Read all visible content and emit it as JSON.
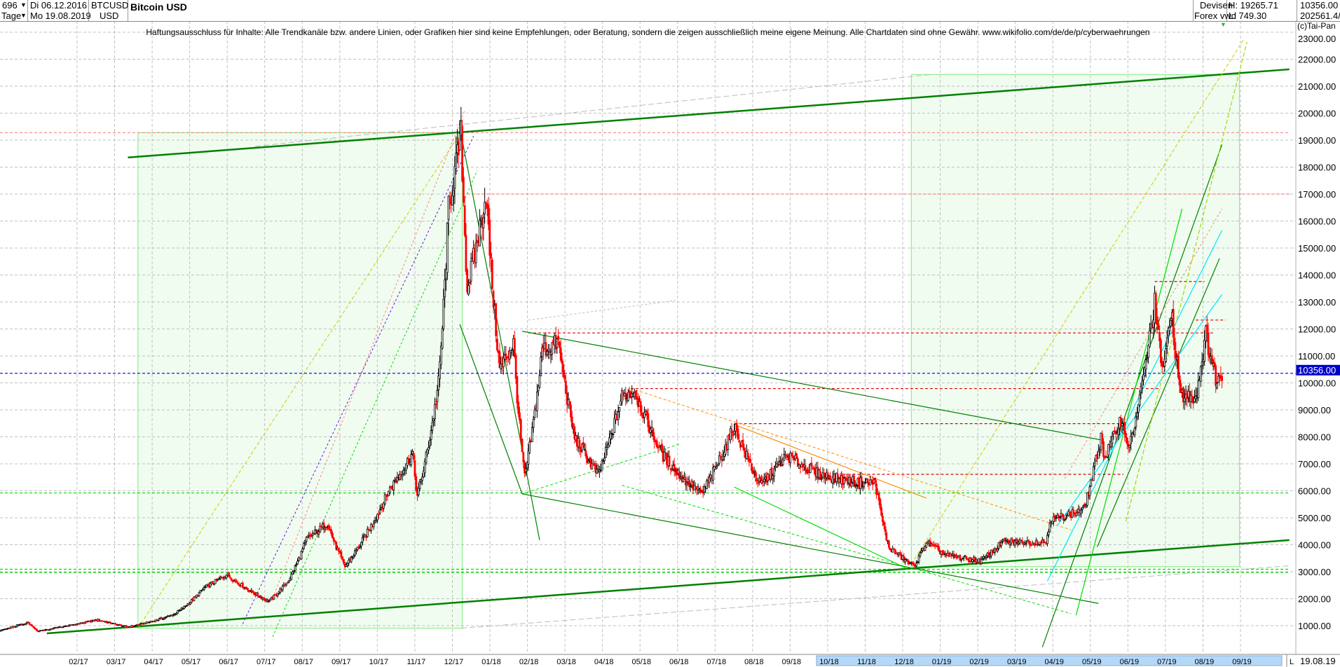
{
  "header": {
    "period_count": "696",
    "interval": "Tage",
    "start_date": "Di 06.12.2016",
    "end_date": "Mo 19.08.2019",
    "symbol": "BTCUSD",
    "currency": "USD",
    "title": "Bitcoin USD",
    "source_line1": "Devisen",
    "source_line2": "Forex vwd",
    "high": "H: 19265.71",
    "low": "L: 749.30",
    "last": "10356.00",
    "volume": "202561.4/"
  },
  "disclaimer": "Haftungsausschluss für Inhalte: Alle Trendkanäle bzw. andere Linien, oder Grafiken hier sind keine Empfehlungen, oder Beratung, sondern die zeigen ausschließlich meine eigene Meinung. Alle Chartdaten sind ohne Gewähr.  www.wikifolio.com/de/de/p/cyberwaehrungen",
  "copyright": "(c)Tai-Pan",
  "footer": {
    "scale_mode": "L",
    "last_date": "19.08.19"
  },
  "chart_data": {
    "type": "candlestick",
    "title": "Bitcoin USD",
    "ylim": [
      0,
      23000
    ],
    "y_ticks": [
      "1000.00",
      "2000.00",
      "3000.00",
      "4000.00",
      "5000.00",
      "6000.00",
      "7000.00",
      "8000.00",
      "9000.00",
      "10000.00",
      "11000.00",
      "12000.00",
      "13000.00",
      "14000.00",
      "15000.00",
      "16000.00",
      "17000.00",
      "18000.00",
      "19000.00",
      "20000.00",
      "21000.00",
      "22000.00",
      "23000.00"
    ],
    "x_ticks": [
      "02/17",
      "03/17",
      "04/17",
      "05/17",
      "06/17",
      "07/17",
      "08/17",
      "09/17",
      "10/17",
      "11/17",
      "12/17",
      "01/18",
      "02/18",
      "03/18",
      "04/18",
      "05/18",
      "06/18",
      "07/18",
      "08/18",
      "09/18",
      "10/18",
      "11/18",
      "12/18",
      "01/19",
      "02/19",
      "03/19",
      "04/19",
      "05/19",
      "06/19",
      "07/19",
      "08/19",
      "09/19"
    ],
    "x_highlight": [
      "10/18",
      "09/19"
    ],
    "grid": true,
    "up_color": "#000000",
    "down_color": "#ff0000",
    "current_price": {
      "value": 10356,
      "label": "10356.00",
      "color": "#0000cc"
    },
    "close_path": [
      [
        "2016-12-06",
        760
      ],
      [
        "2017-01-04",
        1130
      ],
      [
        "2017-01-12",
        790
      ],
      [
        "2017-02-01",
        970
      ],
      [
        "2017-03-01",
        1220
      ],
      [
        "2017-03-25",
        950
      ],
      [
        "2017-04-15",
        1180
      ],
      [
        "2017-05-01",
        1420
      ],
      [
        "2017-05-25",
        2400
      ],
      [
        "2017-06-12",
        2900
      ],
      [
        "2017-07-16",
        1900
      ],
      [
        "2017-08-01",
        2700
      ],
      [
        "2017-08-15",
        4200
      ],
      [
        "2017-09-01",
        4800
      ],
      [
        "2017-09-15",
        3200
      ],
      [
        "2017-10-01",
        4300
      ],
      [
        "2017-10-20",
        6000
      ],
      [
        "2017-11-08",
        7400
      ],
      [
        "2017-11-12",
        5800
      ],
      [
        "2017-11-29",
        10000
      ],
      [
        "2017-12-07",
        16500
      ],
      [
        "2017-12-17",
        19200
      ],
      [
        "2017-12-22",
        13500
      ],
      [
        "2018-01-06",
        17000
      ],
      [
        "2018-01-17",
        10500
      ],
      [
        "2018-01-28",
        11500
      ],
      [
        "2018-02-06",
        6500
      ],
      [
        "2018-02-20",
        11200
      ],
      [
        "2018-03-05",
        11500
      ],
      [
        "2018-03-18",
        8000
      ],
      [
        "2018-04-06",
        6600
      ],
      [
        "2018-04-25",
        9500
      ],
      [
        "2018-05-05",
        9700
      ],
      [
        "2018-05-28",
        7300
      ],
      [
        "2018-06-12",
        6500
      ],
      [
        "2018-06-28",
        5900
      ],
      [
        "2018-07-24",
        8400
      ],
      [
        "2018-08-14",
        6200
      ],
      [
        "2018-09-04",
        7300
      ],
      [
        "2018-09-30",
        6600
      ],
      [
        "2018-10-31",
        6300
      ],
      [
        "2018-11-14",
        6300
      ],
      [
        "2018-11-25",
        3900
      ],
      [
        "2018-12-15",
        3200
      ],
      [
        "2018-12-25",
        4100
      ],
      [
        "2019-01-10",
        3600
      ],
      [
        "2019-02-07",
        3400
      ],
      [
        "2019-02-24",
        4100
      ],
      [
        "2019-03-31",
        4100
      ],
      [
        "2019-04-03",
        4900
      ],
      [
        "2019-04-30",
        5300
      ],
      [
        "2019-05-14",
        8000
      ],
      [
        "2019-05-17",
        7200
      ],
      [
        "2019-05-30",
        8700
      ],
      [
        "2019-06-06",
        7600
      ],
      [
        "2019-06-26",
        13000
      ],
      [
        "2019-07-02",
        10500
      ],
      [
        "2019-07-10",
        12500
      ],
      [
        "2019-07-17",
        9500
      ],
      [
        "2019-07-29",
        9500
      ],
      [
        "2019-08-06",
        11800
      ],
      [
        "2019-08-15",
        10000
      ],
      [
        "2019-08-19",
        10356
      ]
    ],
    "zones": [
      {
        "from": [
          "2017-04-02",
          905
        ],
        "to": [
          "2017-12-18",
          19277
        ],
        "color": "#f0fcf0",
        "border": "#90ee90"
      },
      {
        "from": [
          "2018-12-13",
          3189
        ],
        "to": [
          "2019-09-02",
          21434
        ],
        "color": "#f0fcf0",
        "border": "#90ee90"
      }
    ],
    "horizontal_lines": [
      {
        "price": 19277,
        "from": "2016-12-06",
        "to": "2019-10-12",
        "color": "#ff8080"
      },
      {
        "price": 17000,
        "from": "2017-12-22",
        "to": "2019-10-12",
        "color": "#ff8080"
      },
      {
        "price": 11852,
        "from": "2018-02-09",
        "to": "2019-08-12",
        "color": "#e00000"
      },
      {
        "price": 9790,
        "from": "2018-05-02",
        "to": "2019-07-01",
        "color": "#e00000"
      },
      {
        "price": 8490,
        "from": "2018-07-24",
        "to": "2019-06-01",
        "color": "#e00000"
      },
      {
        "price": 6610,
        "from": "2018-10-19",
        "to": "2019-06-01",
        "color": "#e00000"
      },
      {
        "price": 12330,
        "from": "2019-07-29",
        "to": "2019-08-22",
        "color": "#e00000"
      },
      {
        "price": 13760,
        "from": "2019-06-26",
        "to": "2019-08-05",
        "color": "#e00000"
      },
      {
        "price": 5920,
        "from": "2016-12-06",
        "to": "2019-10-12",
        "color": "#00dd00"
      },
      {
        "price": 3090,
        "from": "2016-12-06",
        "to": "2019-10-12",
        "color": "#00dd00"
      },
      {
        "price": 2970,
        "from": "2016-12-06",
        "to": "2019-10-12",
        "color": "#00dd00"
      }
    ],
    "trend_lines": [
      {
        "from": [
          "2017-03-25",
          18356
        ],
        "to": [
          "2019-10-12",
          21625
        ],
        "color": "#008000",
        "width": 2.5,
        "dash": ""
      },
      {
        "from": [
          "2017-01-19",
          715
        ],
        "to": [
          "2019-10-12",
          4173
        ],
        "color": "#008000",
        "width": 2.5,
        "dash": ""
      },
      {
        "from": [
          "2017-07-05",
          18769
        ],
        "to": [
          "2018-12-29",
          21434
        ],
        "color": "#bbbbbb",
        "width": 1,
        "dash": "8 4"
      },
      {
        "from": [
          "2017-12-17",
          905
        ],
        "to": [
          "2019-10-12",
          3221
        ],
        "color": "#bbbbbb",
        "width": 1,
        "dash": "8 4"
      },
      {
        "from": [
          "2017-04-02",
          905
        ],
        "to": [
          "2017-12-17",
          19308
        ],
        "color": "#cccc00",
        "width": 1,
        "dash": "5 3"
      },
      {
        "from": [
          "2018-12-13",
          3285
        ],
        "to": [
          "2019-09-05",
          22700
        ],
        "color": "#cccc00",
        "width": 1,
        "dash": "5 3"
      },
      {
        "from": [
          "2017-07-19",
          2015
        ],
        "to": [
          "2017-12-20",
          20100
        ],
        "color": "#ff8080",
        "width": 1,
        "dash": "3 3"
      },
      {
        "from": [
          "2017-06-25",
          1063
        ],
        "to": [
          "2017-12-27",
          19150
        ],
        "color": "#7a00ff",
        "width": 1,
        "dash": "3 3"
      },
      {
        "from": [
          "2017-07-19",
          588
        ],
        "to": [
          "2017-12-30",
          17880
        ],
        "color": "#00dd00",
        "width": 1,
        "dash": "3 3"
      },
      {
        "from": [
          "2017-12-16",
          19467
        ],
        "to": [
          "2018-02-18",
          4173
        ],
        "color": "#008000",
        "width": 1.2,
        "dash": ""
      },
      {
        "from": [
          "2017-12-16",
          12170
        ],
        "to": [
          "2018-02-04",
          5886
        ],
        "color": "#008000",
        "width": 1.2,
        "dash": ""
      },
      {
        "from": [
          "2018-02-04",
          11915
        ],
        "to": [
          "2019-05-14",
          7886
        ],
        "color": "#008000",
        "width": 1.2,
        "dash": ""
      },
      {
        "from": [
          "2018-02-04",
          5886
        ],
        "to": [
          "2019-05-12",
          1825
        ],
        "color": "#008000",
        "width": 1.2,
        "dash": ""
      },
      {
        "from": [
          "2018-02-04",
          5886
        ],
        "to": [
          "2018-06-10",
          7727
        ],
        "color": "#00dd00",
        "width": 1,
        "dash": "4 3"
      },
      {
        "from": [
          "2018-02-09",
          12328
        ],
        "to": [
          "2018-06-07",
          13057
        ],
        "color": "#bbbbbb",
        "width": 1,
        "dash": "3 3"
      },
      {
        "from": [
          "2018-05-02",
          9790
        ],
        "to": [
          "2019-04-20",
          4554
        ],
        "color": "#ff8c00",
        "width": 1,
        "dash": "4 3"
      },
      {
        "from": [
          "2018-07-24",
          8456
        ],
        "to": [
          "2018-12-25",
          5728
        ],
        "color": "#ff8c00",
        "width": 1.2,
        "dash": ""
      },
      {
        "from": [
          "2018-07-24",
          6140
        ],
        "to": [
          "2018-12-09",
          3126
        ],
        "color": "#00dd00",
        "width": 1.2,
        "dash": ""
      },
      {
        "from": [
          "2018-04-25",
          6204
        ],
        "to": [
          "2019-04-20",
          1444
        ],
        "color": "#00dd00",
        "width": 1,
        "dash": "4 3"
      },
      {
        "from": [
          "2019-03-28",
          207
        ],
        "to": [
          "2019-08-19",
          18832
        ],
        "color": "#008000",
        "width": 1.2,
        "dash": ""
      },
      {
        "from": [
          "2019-05-11",
          3919
        ],
        "to": [
          "2019-08-17",
          14612
        ],
        "color": "#008000",
        "width": 1.2,
        "dash": ""
      },
      {
        "from": [
          "2019-04-24",
          1381
        ],
        "to": [
          "2019-07-18",
          16453
        ],
        "color": "#00dd00",
        "width": 1.2,
        "dash": ""
      },
      {
        "from": [
          "2019-04-01",
          2650
        ],
        "to": [
          "2019-08-19",
          15660
        ],
        "color": "#00e5ff",
        "width": 1.2,
        "dash": ""
      },
      {
        "from": [
          "2019-04-09",
          4712
        ],
        "to": [
          "2019-08-19",
          13280
        ],
        "color": "#00e5ff",
        "width": 1.2,
        "dash": ""
      },
      {
        "from": [
          "2019-06-03",
          4871
        ],
        "to": [
          "2019-09-08",
          22640
        ],
        "color": "#99dd00",
        "width": 1.2,
        "dash": "6 3"
      },
      {
        "from": [
          "2019-04-15",
          6458
        ],
        "to": [
          "2019-08-19",
          16453
        ],
        "color": "#ff8080",
        "width": 1,
        "dash": "3 3"
      }
    ]
  }
}
